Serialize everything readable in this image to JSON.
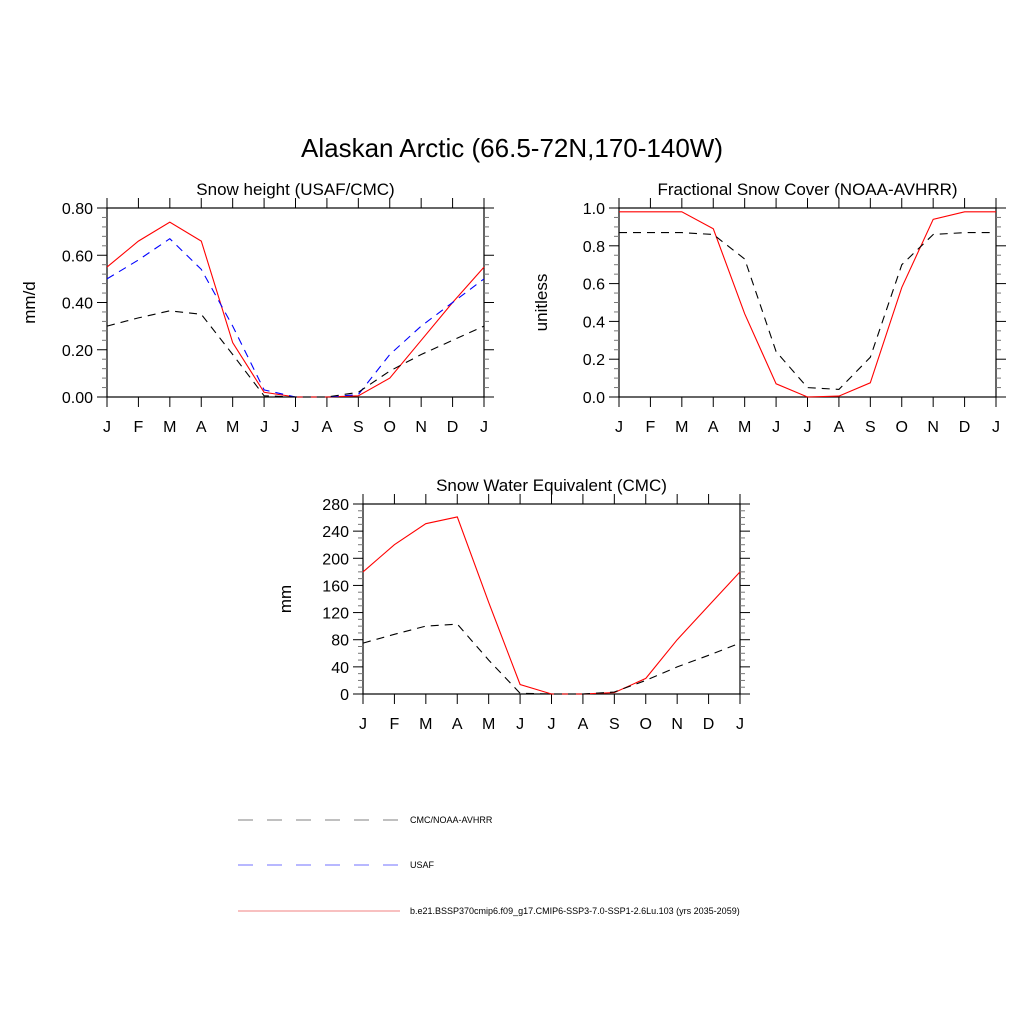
{
  "title": "Alaskan Arctic (66.5-72N,170-140W)",
  "legend": {
    "placement": "bottom",
    "entries": [
      {
        "label": "CMC/NOAA-AVHRR",
        "color": "#808080",
        "dash": "dashed"
      },
      {
        "label": "USAF",
        "color": "#7070ff",
        "dash": "dashed"
      },
      {
        "label": "b.e21.BSSP370cmip6.f09_g17.CMIP6-SSP3-7.0-SSP1-2.6Lu.103 (yrs 2035-2059)",
        "color": "#f08080",
        "dash": "solid"
      }
    ]
  },
  "chart_data": [
    {
      "type": "line",
      "title": "Snow height (USAF/CMC)",
      "ylabel": "mm/d",
      "categories": [
        "J",
        "F",
        "M",
        "A",
        "M",
        "J",
        "J",
        "A",
        "S",
        "O",
        "N",
        "D",
        "J"
      ],
      "ylim": [
        0,
        0.8
      ],
      "yticks": [
        "0.00",
        "0.20",
        "0.40",
        "0.60",
        "0.80"
      ],
      "grid": false,
      "series": [
        {
          "color": "#ff0000",
          "dash": "solid",
          "values": [
            0.55,
            0.66,
            0.74,
            0.66,
            0.23,
            0.02,
            0,
            0,
            0.005,
            0.08,
            0.24,
            0.4,
            0.55
          ]
        },
        {
          "color": "#0000ff",
          "dash": "dashed",
          "values": [
            0.5,
            0.58,
            0.67,
            0.54,
            0.3,
            0.03,
            0,
            0,
            0.01,
            0.18,
            0.3,
            0.4,
            0.5
          ]
        },
        {
          "color": "#000000",
          "dash": "dashed",
          "values": [
            0.3,
            0.335,
            0.365,
            0.35,
            0.18,
            0.005,
            0,
            0,
            0.02,
            0.11,
            0.18,
            0.24,
            0.3
          ]
        }
      ]
    },
    {
      "type": "line",
      "title": "Fractional Snow Cover (NOAA-AVHRR)",
      "ylabel": "unitless",
      "categories": [
        "J",
        "F",
        "M",
        "A",
        "M",
        "J",
        "J",
        "A",
        "S",
        "O",
        "N",
        "D",
        "J"
      ],
      "ylim": [
        0,
        1.0
      ],
      "yticks": [
        "0.0",
        "0.2",
        "0.4",
        "0.6",
        "0.8",
        "1.0"
      ],
      "grid": false,
      "series": [
        {
          "color": "#ff0000",
          "dash": "solid",
          "values": [
            0.98,
            0.98,
            0.98,
            0.89,
            0.44,
            0.07,
            0,
            0.005,
            0.075,
            0.58,
            0.94,
            0.98,
            0.98
          ]
        },
        {
          "color": "#000000",
          "dash": "dashed",
          "values": [
            0.87,
            0.87,
            0.87,
            0.86,
            0.73,
            0.24,
            0.05,
            0.04,
            0.21,
            0.7,
            0.86,
            0.87,
            0.87
          ]
        }
      ]
    },
    {
      "type": "line",
      "title": "Snow Water Equivalent (CMC)",
      "ylabel": "mm",
      "categories": [
        "J",
        "F",
        "M",
        "A",
        "M",
        "J",
        "J",
        "A",
        "S",
        "O",
        "N",
        "D",
        "J"
      ],
      "ylim": [
        0,
        280
      ],
      "yticks": [
        "0",
        "40",
        "80",
        "120",
        "160",
        "200",
        "240",
        "280"
      ],
      "grid": false,
      "series": [
        {
          "color": "#ff0000",
          "dash": "solid",
          "values": [
            180,
            220,
            251,
            261,
            135,
            14,
            0,
            0,
            2,
            23,
            80,
            130,
            180
          ]
        },
        {
          "color": "#000000",
          "dash": "dashed",
          "values": [
            75,
            88,
            100,
            103,
            50,
            1,
            0,
            0,
            3,
            20,
            40,
            57,
            75
          ]
        }
      ]
    }
  ]
}
